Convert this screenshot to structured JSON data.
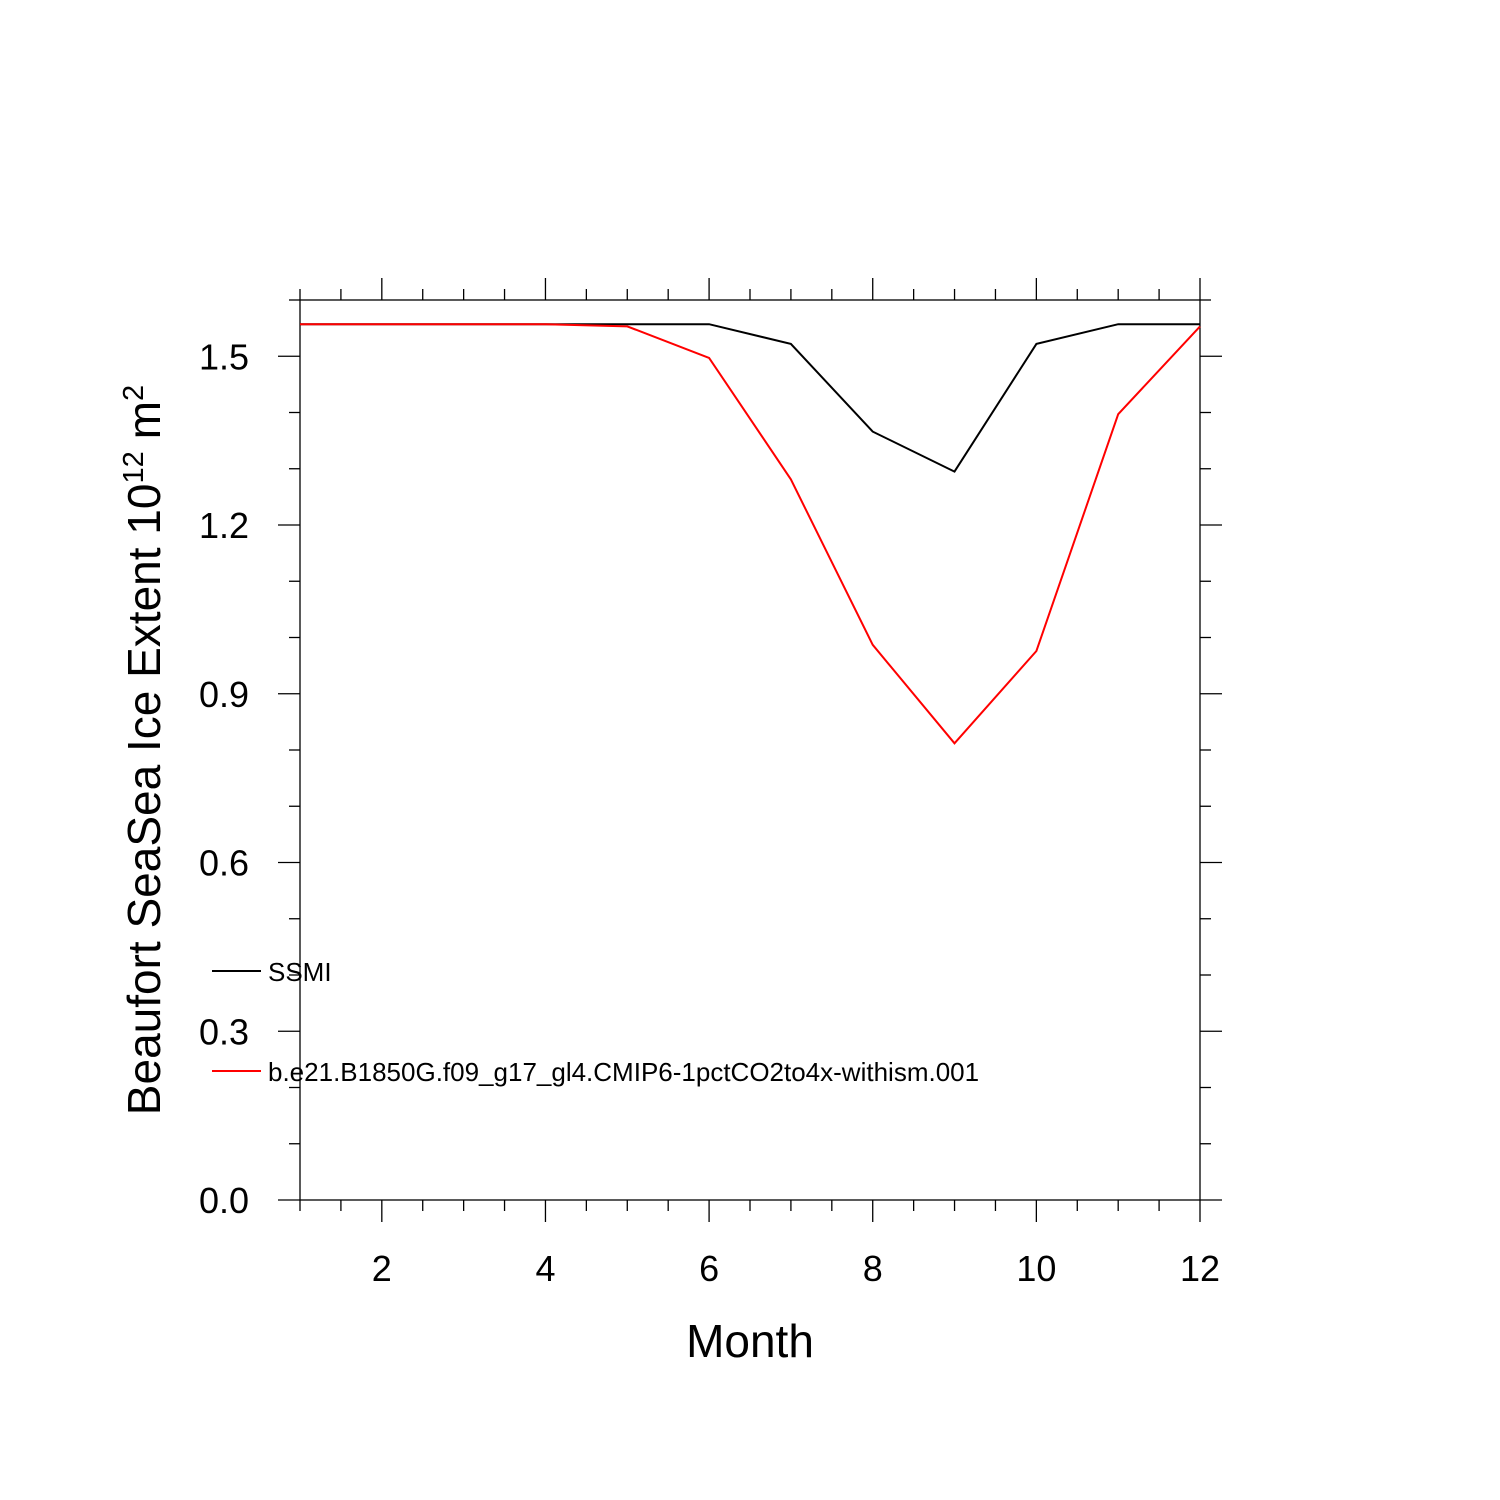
{
  "chart_data": {
    "type": "line",
    "title": "",
    "xlabel": "Month",
    "ylabel_main": "Beaufort SeaSea Ice Extent 10",
    "ylabel_exponent": "12",
    "ylabel_unit": "m",
    "ylabel_unit_exponent": "2",
    "xlim": [
      1,
      12
    ],
    "ylim": [
      0.0,
      1.6
    ],
    "x_ticks": [
      2,
      4,
      6,
      8,
      10,
      12
    ],
    "x_tick_labels": [
      "2",
      "4",
      "6",
      "8",
      "10",
      "12"
    ],
    "y_ticks": [
      0.0,
      0.3,
      0.6,
      0.9,
      1.2,
      1.5
    ],
    "y_tick_labels": [
      "0.0",
      "0.3",
      "0.6",
      "0.9",
      "1.2",
      "1.5"
    ],
    "grid": false,
    "legend_position": "lower-left",
    "x": [
      1,
      2,
      3,
      4,
      5,
      6,
      7,
      8,
      9,
      10,
      11,
      12
    ],
    "series": [
      {
        "name": "SSMI",
        "color": "#000000",
        "values": [
          1.557,
          1.557,
          1.557,
          1.557,
          1.557,
          1.557,
          1.522,
          1.366,
          1.295,
          1.522,
          1.557,
          1.557
        ]
      },
      {
        "name": "b.e21.B1850G.f09_g17_gl4.CMIP6-1pctCO2to4x-withism.001",
        "color": "#ff0000",
        "values": [
          1.557,
          1.557,
          1.557,
          1.557,
          1.553,
          1.497,
          1.281,
          0.987,
          0.812,
          0.976,
          1.397,
          1.553
        ]
      }
    ]
  }
}
